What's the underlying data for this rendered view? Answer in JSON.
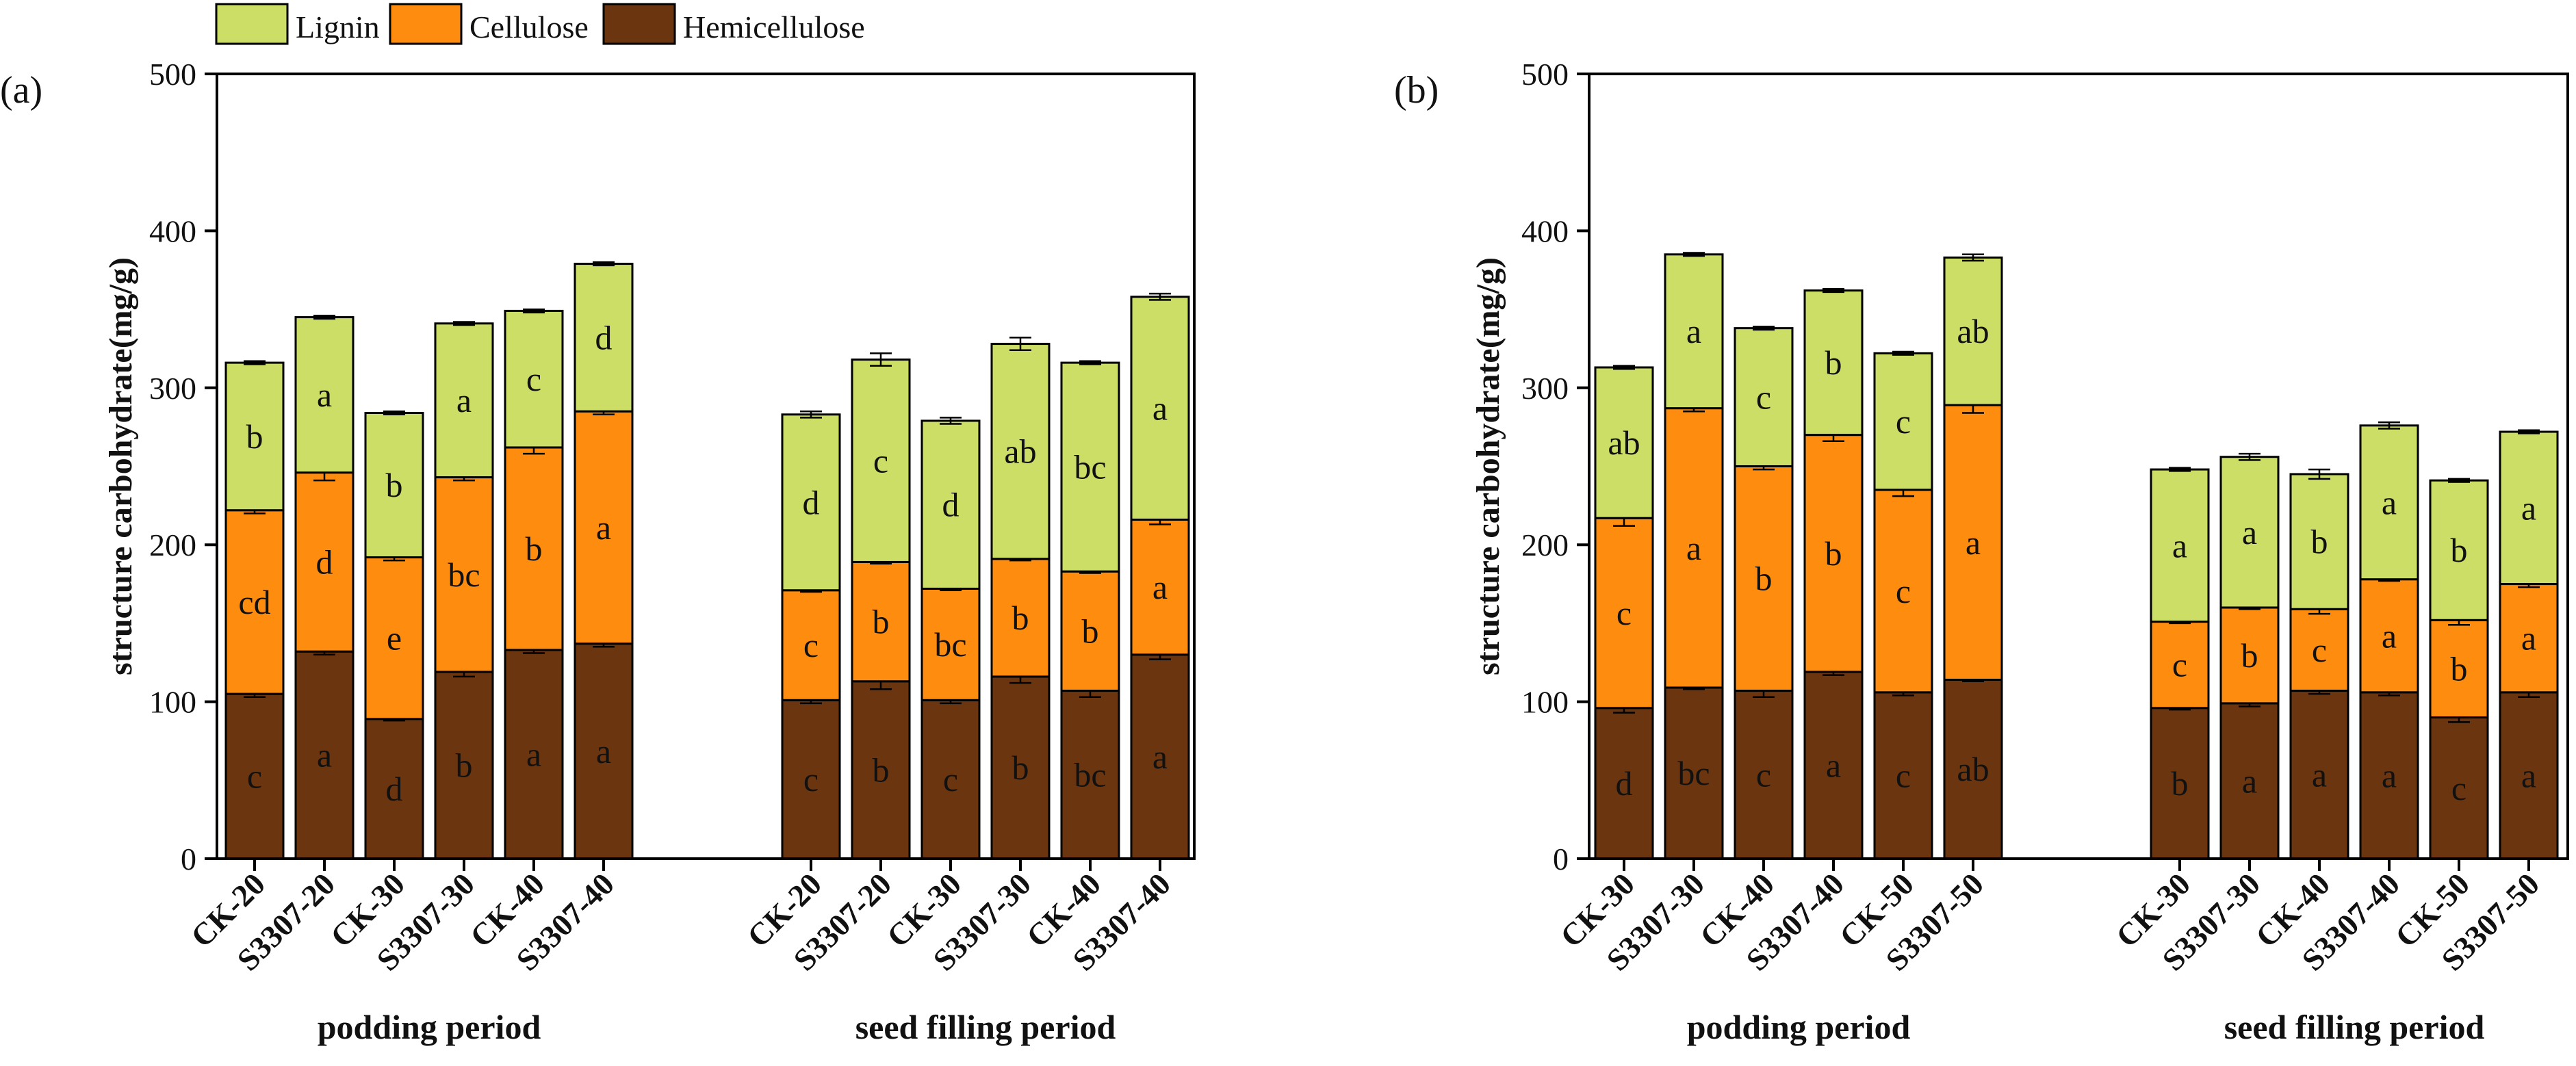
{
  "legend": {
    "items": [
      {
        "label": "Lignin",
        "color": "#ccde66"
      },
      {
        "label": "Cellulose",
        "color": "#fe8c0f"
      },
      {
        "label": "Hemicellulose",
        "color": "#6b3510"
      }
    ]
  },
  "colors": {
    "lignin": "#ccde66",
    "cellulose": "#fe8c0f",
    "hemicellulose": "#6b3510",
    "axis": "#000000"
  },
  "chart_data": [
    {
      "panel_label": "(a)",
      "type": "bar",
      "stacked": true,
      "ylabel": "structure carbohydrate(mg/g)",
      "ylim": [
        0,
        500
      ],
      "yticks": [
        "0",
        "100",
        "200",
        "300",
        "400",
        "500"
      ],
      "groups": [
        {
          "label": "podding period",
          "categories": [
            "CK-20",
            "S3307-20",
            "CK-30",
            "S3307-30",
            "CK-40",
            "S3307-40"
          ],
          "series": [
            {
              "name": "Hemicellulose",
              "values": [
                105,
                132,
                89,
                119,
                133,
                137
              ],
              "errors": [
                2,
                2,
                1,
                3,
                2,
                2
              ],
              "letters": [
                "c",
                "a",
                "d",
                "b",
                "a",
                "a"
              ]
            },
            {
              "name": "Cellulose",
              "values": [
                117,
                114,
                103,
                124,
                129,
                148
              ],
              "errors": [
                2,
                5,
                2,
                2,
                4,
                2
              ],
              "letters": [
                "cd",
                "d",
                "e",
                "bc",
                "b",
                "a"
              ]
            },
            {
              "name": "Lignin",
              "values": [
                94,
                99,
                92,
                98,
                87,
                94
              ],
              "errors": [
                1,
                1,
                1,
                1,
                1,
                1
              ],
              "letters": [
                "b",
                "a",
                "b",
                "a",
                "c",
                "d"
              ]
            }
          ]
        },
        {
          "label": "seed filling period",
          "categories": [
            "CK-20",
            "S3307-20",
            "CK-30",
            "S3307-30",
            "CK-40",
            "S3307-40"
          ],
          "series": [
            {
              "name": "Hemicellulose",
              "values": [
                101,
                113,
                101,
                116,
                107,
                130
              ],
              "errors": [
                2,
                5,
                2,
                4,
                4,
                3
              ],
              "letters": [
                "c",
                "b",
                "c",
                "b",
                "bc",
                "a"
              ]
            },
            {
              "name": "Cellulose",
              "values": [
                70,
                76,
                71,
                75,
                76,
                86
              ],
              "errors": [
                1,
                1,
                1,
                1,
                1,
                3
              ],
              "letters": [
                "c",
                "b",
                "bc",
                "b",
                "b",
                "a"
              ]
            },
            {
              "name": "Lignin",
              "values": [
                112,
                129,
                107,
                137,
                133,
                142
              ],
              "errors": [
                2,
                4,
                2,
                4,
                1,
                2
              ],
              "letters": [
                "d",
                "c",
                "d",
                "ab",
                "bc",
                "a"
              ]
            }
          ]
        }
      ]
    },
    {
      "panel_label": "(b)",
      "type": "bar",
      "stacked": true,
      "ylabel": "structure carbohydrate(mg/g)",
      "ylim": [
        0,
        500
      ],
      "yticks": [
        "0",
        "100",
        "200",
        "300",
        "400",
        "500"
      ],
      "groups": [
        {
          "label": "podding period",
          "categories": [
            "CK-30",
            "S3307-30",
            "CK-40",
            "S3307-40",
            "CK-50",
            "S3307-50"
          ],
          "series": [
            {
              "name": "Hemicellulose",
              "values": [
                96,
                109,
                107,
                119,
                106,
                114
              ],
              "errors": [
                3,
                1,
                4,
                2,
                2,
                1
              ],
              "letters": [
                "d",
                "bc",
                "c",
                "a",
                "c",
                "ab"
              ]
            },
            {
              "name": "Cellulose",
              "values": [
                121,
                178,
                143,
                151,
                129,
                175
              ],
              "errors": [
                5,
                2,
                2,
                4,
                4,
                5
              ],
              "letters": [
                "c",
                "a",
                "b",
                "b",
                "c",
                "a"
              ]
            },
            {
              "name": "Lignin",
              "values": [
                96,
                98,
                88,
                92,
                87,
                94
              ],
              "errors": [
                1,
                1,
                1,
                1,
                1,
                2
              ],
              "letters": [
                "ab",
                "a",
                "c",
                "b",
                "c",
                "ab"
              ]
            }
          ]
        },
        {
          "label": "seed filling period",
          "categories": [
            "CK-30",
            "S3307-30",
            "CK-40",
            "S3307-40",
            "CK-50",
            "S3307-50"
          ],
          "series": [
            {
              "name": "Hemicellulose",
              "values": [
                96,
                99,
                107,
                106,
                90,
                106
              ],
              "errors": [
                1,
                2,
                2,
                2,
                3,
                3
              ],
              "letters": [
                "b",
                "a",
                "a",
                "a",
                "c",
                "a"
              ]
            },
            {
              "name": "Cellulose",
              "values": [
                55,
                61,
                52,
                72,
                62,
                69
              ],
              "errors": [
                1,
                1,
                3,
                1,
                3,
                2
              ],
              "letters": [
                "c",
                "b",
                "c",
                "a",
                "b",
                "a"
              ]
            },
            {
              "name": "Lignin",
              "values": [
                97,
                96,
                86,
                98,
                89,
                97
              ],
              "errors": [
                1,
                2,
                3,
                2,
                1,
                1
              ],
              "letters": [
                "a",
                "a",
                "b",
                "a",
                "b",
                "a"
              ]
            }
          ]
        }
      ]
    }
  ]
}
